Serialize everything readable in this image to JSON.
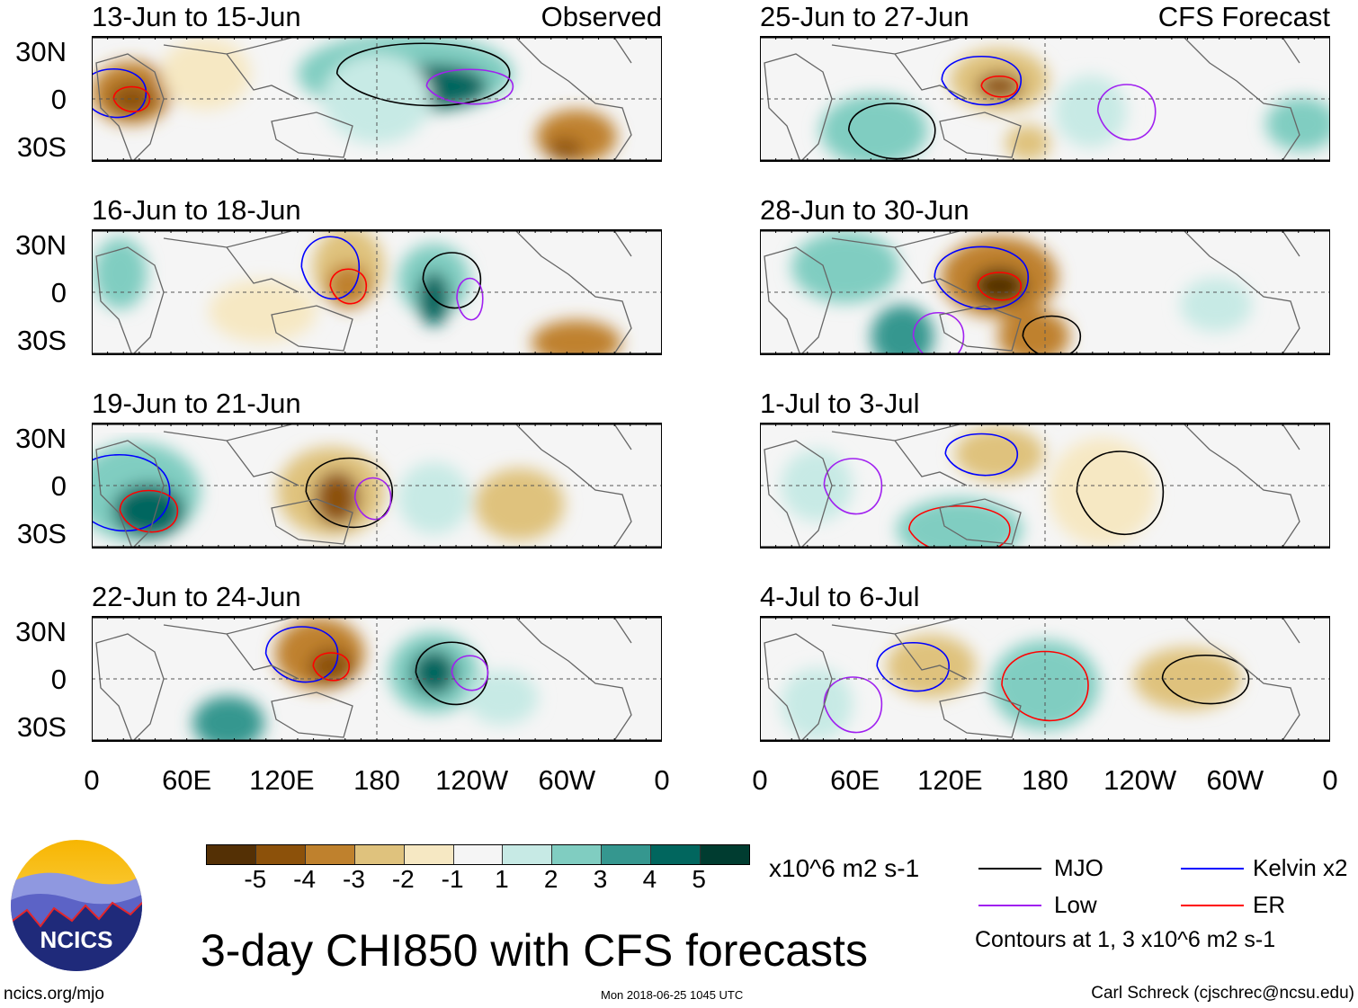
{
  "title": "3-day CHI850 with CFS forecasts",
  "left_label": "Observed",
  "right_label": "CFS Forecast",
  "units": "x10^6 m2 s-1",
  "contour_note": "Contours at 1, 3 x10^6 m2 s-1",
  "site": "ncics.org/mjo",
  "timestamp": "Mon 2018-06-25 1045 UTC",
  "credit": "Carl Schreck (cjschrec@ncsu.edu)",
  "logo_text": "NCICS",
  "chart_data": {
    "type": "heatmap",
    "panels": [
      {
        "title": "13-Jun to 15-Jun",
        "column": "Observed"
      },
      {
        "title": "16-Jun to 18-Jun",
        "column": "Observed"
      },
      {
        "title": "19-Jun to 21-Jun",
        "column": "Observed"
      },
      {
        "title": "22-Jun to 24-Jun",
        "column": "Observed"
      },
      {
        "title": "25-Jun to 27-Jun",
        "column": "CFS Forecast"
      },
      {
        "title": "28-Jun to 30-Jun",
        "column": "CFS Forecast"
      },
      {
        "title": "1-Jul to 3-Jul",
        "column": "CFS Forecast"
      },
      {
        "title": "4-Jul to 6-Jul",
        "column": "CFS Forecast"
      }
    ],
    "yticks": [
      "30N",
      "0",
      "30S"
    ],
    "xticks": [
      "0",
      "60E",
      "120E",
      "180",
      "120W",
      "60W",
      "0"
    ],
    "colorbar": {
      "labels": [
        "-5",
        "-4",
        "-3",
        "-2",
        "-1",
        "1",
        "2",
        "3",
        "4",
        "5"
      ],
      "colors": [
        "#543005",
        "#8c510a",
        "#bf812d",
        "#dfc27d",
        "#f6e8c3",
        "#f5f5f5",
        "#c7eae5",
        "#80cdc1",
        "#35978f",
        "#01665e",
        "#003c30"
      ]
    },
    "legend": [
      {
        "label": "MJO",
        "color": "#000000"
      },
      {
        "label": "Kelvin x2",
        "color": "#0000ff"
      },
      {
        "label": "Low",
        "color": "#a020f0"
      },
      {
        "label": "ER",
        "color": "#ff0000"
      }
    ]
  }
}
